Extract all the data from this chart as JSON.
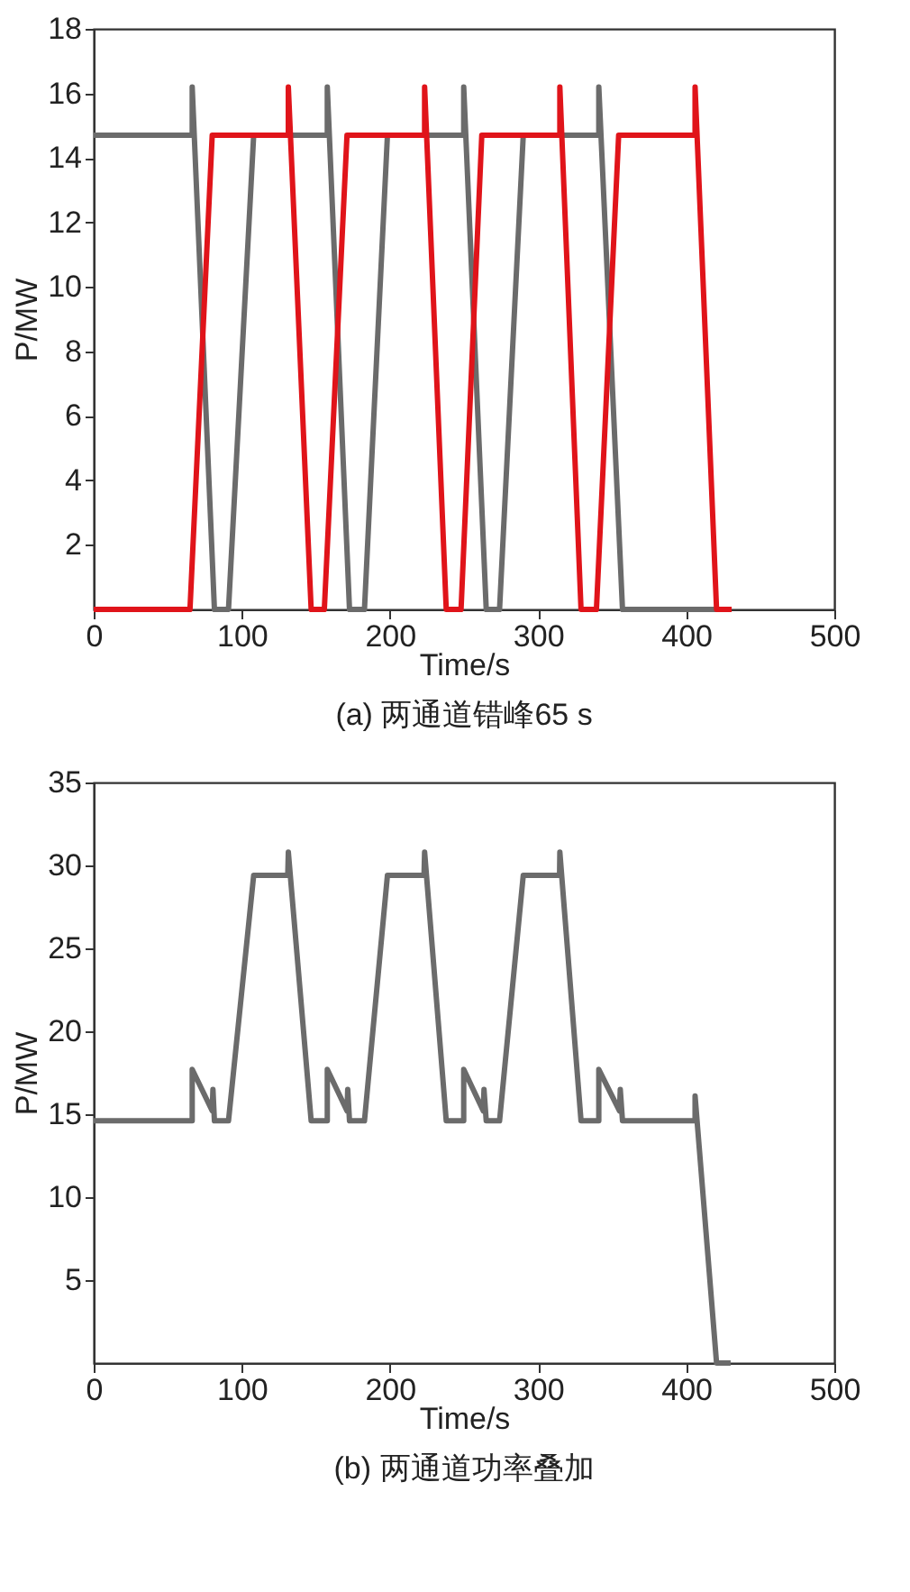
{
  "chart_data": [
    {
      "type": "line",
      "title": "(a) 两通道错峰65 s",
      "xlabel": "Time/s",
      "ylabel": "P/MW",
      "xlim": [
        0,
        500
      ],
      "xticks": [
        0,
        100,
        200,
        300,
        400,
        500
      ],
      "ylim": [
        0,
        18
      ],
      "yticks": [
        2,
        4,
        6,
        8,
        10,
        12,
        14,
        16,
        18
      ],
      "grid": false,
      "legend": false,
      "line_style": "solid",
      "marker": "none",
      "series": [
        {
          "color": "#6b6b6b",
          "x": [
            0,
            66.5,
            66.5,
            81.5,
            91,
            108,
            157.7,
            157.7,
            172.7,
            182.8,
            198.3,
            249.8,
            249.8,
            265,
            274,
            290,
            341,
            341,
            357,
            430
          ],
          "values": [
            14.7,
            14.7,
            16.2,
            0,
            0,
            14.7,
            14.7,
            16.2,
            0,
            0,
            14.7,
            14.7,
            16.2,
            0,
            0,
            14.7,
            14.7,
            16.2,
            0,
            0
          ]
        },
        {
          "color": "#e0141a",
          "x": [
            0,
            65,
            80,
            131.4,
            131.4,
            146.8,
            155.7,
            171,
            223.4,
            223.4,
            238,
            248,
            262,
            314.7,
            314.7,
            329,
            339.4,
            354.4,
            406,
            406,
            420.5,
            430.7
          ],
          "values": [
            0,
            0,
            14.7,
            14.7,
            16.2,
            0,
            0,
            14.7,
            14.7,
            16.2,
            0,
            0,
            14.7,
            14.7,
            16.2,
            0,
            0,
            14.7,
            14.7,
            16.2,
            0,
            0
          ]
        }
      ]
    },
    {
      "type": "line",
      "title": "(b) 两通道功率叠加",
      "xlabel": "Time/s",
      "ylabel": "P/MW",
      "xlim": [
        0,
        500
      ],
      "xticks": [
        0,
        100,
        200,
        300,
        400,
        500
      ],
      "ylim": [
        0,
        35
      ],
      "yticks": [
        5,
        10,
        15,
        20,
        25,
        30,
        35
      ],
      "grid": false,
      "legend": false,
      "line_style": "solid",
      "marker": "none",
      "series": [
        {
          "color": "#6b6b6b",
          "x": [
            0,
            66.5,
            66.5,
            80,
            80.5,
            81.5,
            91,
            108,
            131,
            131.4,
            146.8,
            157.7,
            157.7,
            171,
            171.5,
            172.7,
            182.8,
            198.3,
            223,
            223.4,
            238,
            249.8,
            249.8,
            263,
            263.5,
            265,
            274,
            290,
            314.5,
            314.7,
            329,
            341,
            341,
            355,
            355.5,
            357,
            406,
            406,
            420.5,
            430
          ],
          "values": [
            14.6,
            14.6,
            17.7,
            15.2,
            16.5,
            14.6,
            14.6,
            29.4,
            29.4,
            30.8,
            14.6,
            14.6,
            17.7,
            15.2,
            16.5,
            14.6,
            14.6,
            29.4,
            29.4,
            30.8,
            14.6,
            14.6,
            17.7,
            15.2,
            16.5,
            14.6,
            14.6,
            29.4,
            29.4,
            30.8,
            14.6,
            14.6,
            17.7,
            15.2,
            16.5,
            14.6,
            14.6,
            16.1,
            0,
            0
          ]
        }
      ]
    }
  ]
}
